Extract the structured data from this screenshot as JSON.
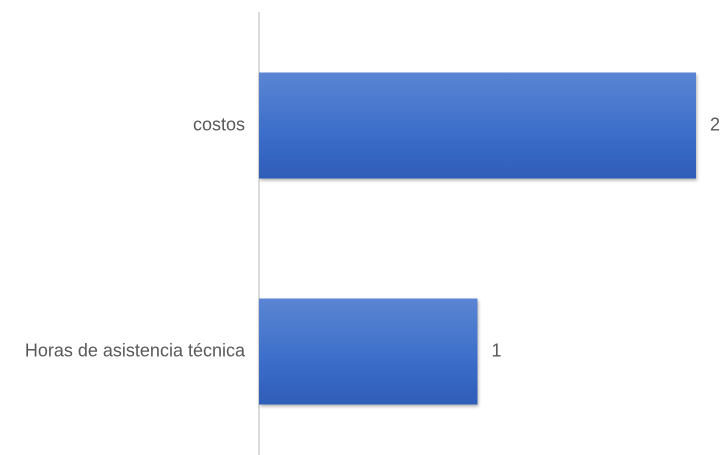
{
  "chart_data": {
    "type": "bar",
    "orientation": "horizontal",
    "categories": [
      "costos",
      "Horas de asistencia técnica"
    ],
    "values": [
      2,
      1
    ],
    "xlim": [
      0,
      2
    ],
    "grid": false,
    "legend": false,
    "bar_color": "#3a6cc7",
    "data_labels": [
      "2",
      "1"
    ]
  }
}
